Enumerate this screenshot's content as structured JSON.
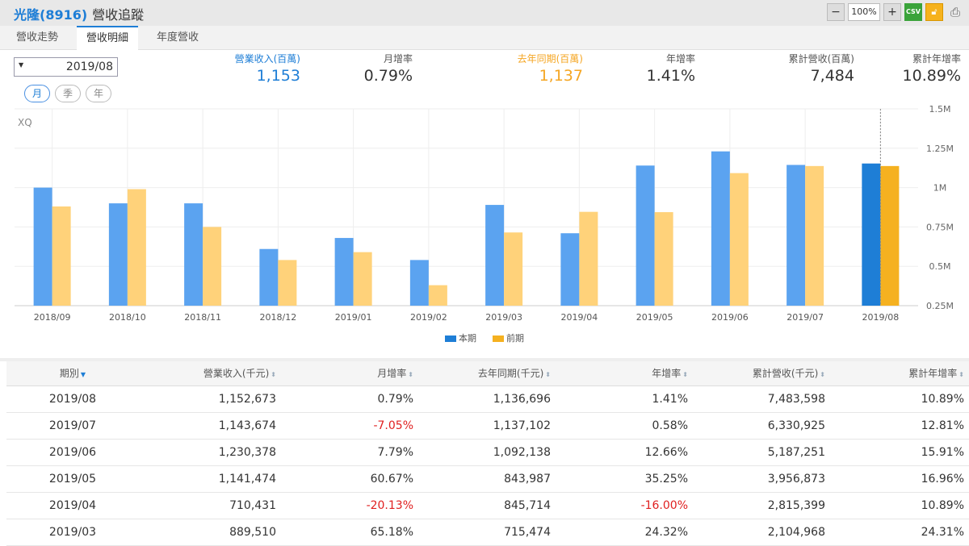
{
  "header": {
    "stock": "光隆(8916)",
    "page_title": "營收追蹤",
    "zoom": "100%",
    "csv": "CSV"
  },
  "tabs": [
    {
      "label": "營收走勢"
    },
    {
      "label": "營收明細",
      "active": true
    },
    {
      "label": "年度營收"
    }
  ],
  "date_select": {
    "value": "2019/08"
  },
  "period_buttons": [
    {
      "label": "月",
      "active": true
    },
    {
      "label": "季"
    },
    {
      "label": "年"
    }
  ],
  "metrics": [
    {
      "label": "營業收入(百萬)",
      "value": "1,153",
      "color": "#1e7ed6"
    },
    {
      "label": "月增率",
      "value": "0.79%"
    },
    {
      "label": "去年同期(百萬)",
      "value": "1,137",
      "color": "#f5a623"
    },
    {
      "label": "年增率",
      "value": "1.41%"
    },
    {
      "label": "累計營收(百萬)",
      "value": "7,484"
    },
    {
      "label": "累計年增率",
      "value": "10.89%"
    }
  ],
  "watermark": "XQ",
  "chart_data": {
    "type": "bar",
    "categories": [
      "2018/09",
      "2018/10",
      "2018/11",
      "2018/12",
      "2019/01",
      "2019/02",
      "2019/03",
      "2019/04",
      "2019/05",
      "2019/06",
      "2019/07",
      "2019/08"
    ],
    "series": [
      {
        "name": "本期",
        "color": "#5ba3f0",
        "highlight_color": "#1e7ed6",
        "values": [
          1.0,
          0.9,
          0.9,
          0.61,
          0.68,
          0.54,
          0.89,
          0.71,
          1.14,
          1.23,
          1.144,
          1.153
        ]
      },
      {
        "name": "前期",
        "color": "#ffd27a",
        "highlight_color": "#f5b120",
        "values": [
          0.88,
          0.99,
          0.75,
          0.54,
          0.59,
          0.38,
          0.715,
          0.846,
          0.844,
          1.092,
          1.137,
          1.137
        ]
      }
    ],
    "y_ticks": [
      "0.25M",
      "0.5M",
      "0.75M",
      "1M",
      "1.25M",
      "1.5M"
    ],
    "ylim": [
      0.25,
      1.5
    ],
    "y_unit": "M",
    "grid": true,
    "y_axis_side": "right",
    "legend_position": "bottom",
    "highlighted_category": "2019/08"
  },
  "table": {
    "headers": [
      "期別",
      "營業收入(千元)",
      "月增率",
      "去年同期(千元)",
      "年增率",
      "累計營收(千元)",
      "累計年增率"
    ],
    "rows": [
      [
        "2019/08",
        "1,152,673",
        "0.79%",
        "1,136,696",
        "1.41%",
        "7,483,598",
        "10.89%"
      ],
      [
        "2019/07",
        "1,143,674",
        "-7.05%",
        "1,137,102",
        "0.58%",
        "6,330,925",
        "12.81%"
      ],
      [
        "2019/06",
        "1,230,378",
        "7.79%",
        "1,092,138",
        "12.66%",
        "5,187,251",
        "15.91%"
      ],
      [
        "2019/05",
        "1,141,474",
        "60.67%",
        "843,987",
        "35.25%",
        "3,956,873",
        "16.96%"
      ],
      [
        "2019/04",
        "710,431",
        "-20.13%",
        "845,714",
        "-16.00%",
        "2,815,399",
        "10.89%"
      ],
      [
        "2019/03",
        "889,510",
        "65.18%",
        "715,474",
        "24.32%",
        "2,104,968",
        "24.31%"
      ]
    ]
  }
}
